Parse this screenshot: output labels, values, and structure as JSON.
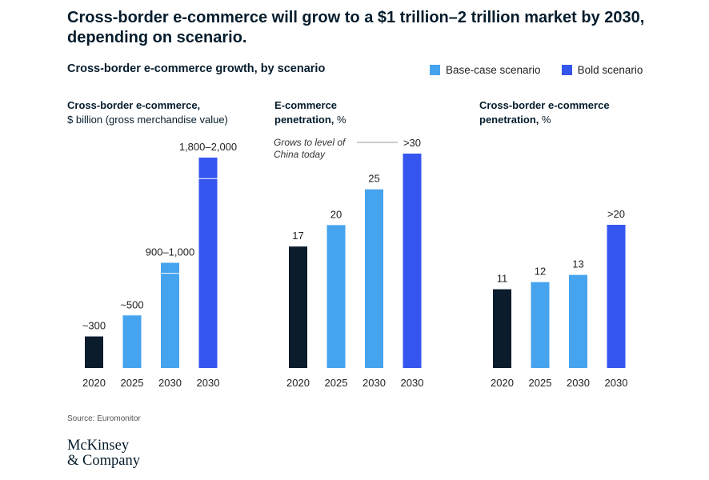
{
  "page": {
    "title": "Cross-border e-commerce will grow to a $1 trillion–2 trillion market by 2030, depending on scenario.",
    "subtitle": "Cross-border e-commerce growth, by scenario",
    "legend": [
      {
        "label": "Base-case scenario",
        "color": "#46a3ee"
      },
      {
        "label": "Bold scenario",
        "color": "#3455ee"
      }
    ],
    "source": "Source: Euromonitor",
    "logo_line1": "McKinsey",
    "logo_line2": "& Company"
  },
  "colors": {
    "actual": "#0b1c2c",
    "base": "#46a3ee",
    "bold": "#3455ee"
  },
  "chart_data": [
    {
      "type": "bar",
      "title_bold": "Cross-border e-commerce,",
      "title_rest": "$ billion (gross merchandise value)",
      "categories": [
        "2020",
        "2025",
        "2030",
        "2030"
      ],
      "values": [
        300,
        500,
        900,
        1800
      ],
      "range_upper": [
        null,
        null,
        1000,
        2000
      ],
      "scenario": [
        "actual",
        "base",
        "base",
        "bold"
      ],
      "data_labels": [
        "~300",
        "~500",
        "900–1,000",
        "1,800–2,000"
      ],
      "ylim": [
        0,
        2000
      ]
    },
    {
      "type": "bar",
      "title_bold": "E-commerce penetration,",
      "title_rest": "%",
      "categories": [
        "2020",
        "2025",
        "2030",
        "2030"
      ],
      "values": [
        17,
        20,
        25,
        30
      ],
      "scenario": [
        "actual",
        "base",
        "base",
        "bold"
      ],
      "data_labels": [
        "17",
        "20",
        "25",
        ">30"
      ],
      "annotation": "Grows to level of China today",
      "ylim": [
        0,
        30
      ]
    },
    {
      "type": "bar",
      "title_bold": "Cross-border e-commerce penetration,",
      "title_rest": "%",
      "categories": [
        "2020",
        "2025",
        "2030",
        "2030"
      ],
      "values": [
        11,
        12,
        13,
        20
      ],
      "scenario": [
        "actual",
        "base",
        "base",
        "bold"
      ],
      "data_labels": [
        "11",
        "12",
        "13",
        ">20"
      ],
      "ylim": [
        0,
        20
      ]
    }
  ]
}
